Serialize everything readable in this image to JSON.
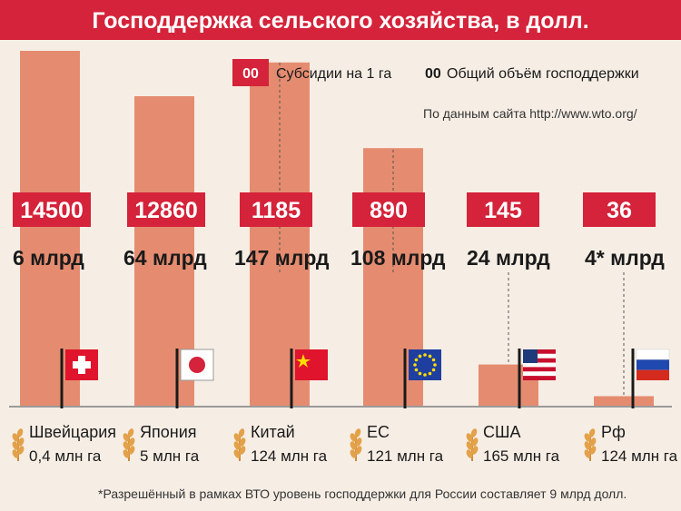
{
  "header": {
    "title": "Господдержка сельского хозяйства, в долл."
  },
  "legend": {
    "subsidy_marker": "00",
    "subsidy_label": "Субсидии на 1 га",
    "total_marker": "00",
    "total_label": "Общий объём господдержки"
  },
  "source": "По данным сайта http://www.wto.org/",
  "footnote": "*Разрешённый в рамках ВТО уровень господдержки для России составляет 9 млрд долл.",
  "colors": {
    "title_bg": "#d4233a",
    "label_bg": "#d4233a",
    "bar": "#e58c70",
    "background": "#f6eee5"
  },
  "chart_data": {
    "type": "bar",
    "categories": [
      "Швейцария",
      "Япония",
      "Китай",
      "ЕС",
      "США",
      "Рф"
    ],
    "series": [
      {
        "name": "Субсидии на 1 га",
        "values": [
          14500,
          12860,
          1185,
          890,
          145,
          36
        ]
      }
    ],
    "value_labels": [
      "14500",
      "12860",
      "1185",
      "890",
      "145",
      "36"
    ],
    "totals": [
      "6 млрд",
      "64 млрд",
      "147 млрд",
      "108 млрд",
      "24 млрд",
      "4* млрд"
    ],
    "areas": [
      "0,4 млн га",
      "5 млн га",
      "124 млн га",
      "121 млн га",
      "165 млн га",
      "124 млн га"
    ],
    "flags": [
      "switzerland-flag",
      "japan-flag",
      "china-flag",
      "eu-flag",
      "usa-flag",
      "russia-flag"
    ],
    "ylim": [
      0,
      14500
    ],
    "axis_break": true,
    "gridlines": false,
    "title": "Господдержка сельского хозяйства, в долл.",
    "xlabel": "",
    "ylabel": "",
    "legend_position": "top-right"
  }
}
